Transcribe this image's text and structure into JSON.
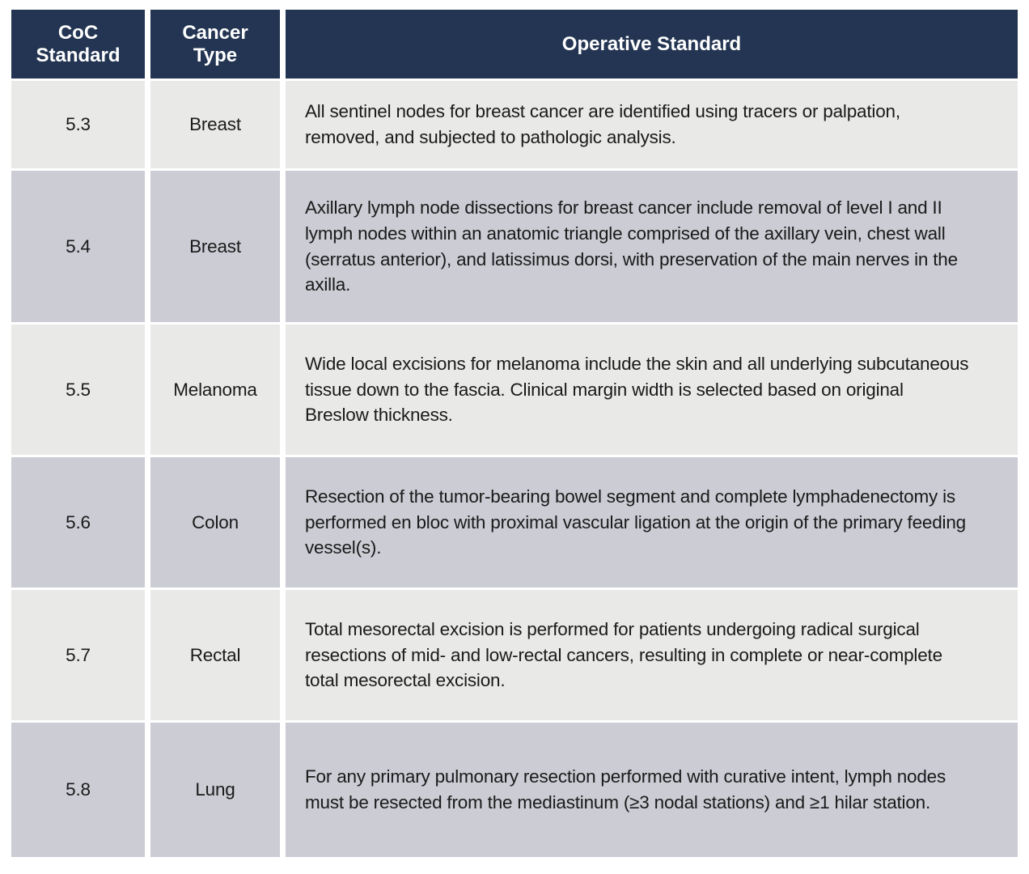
{
  "colors": {
    "header_background": "#233552",
    "header_text": "#ffffff",
    "row_light_background": "#e9e9e8",
    "row_dark_background": "#cbccd4",
    "body_text": "#1a1a1a",
    "separator": "#ffffff"
  },
  "table": {
    "columns": [
      {
        "key": "standard",
        "label": "CoC\nStandard"
      },
      {
        "key": "cancer_type",
        "label": "Cancer\nType"
      },
      {
        "key": "operative_standard",
        "label": "Operative Standard"
      }
    ],
    "rows": [
      {
        "standard": "5.3",
        "cancer_type": "Breast",
        "operative_standard": "All sentinel nodes for breast cancer are identified using tracers or palpation, removed, and subjected to pathologic analysis."
      },
      {
        "standard": "5.4",
        "cancer_type": "Breast",
        "operative_standard": "Axillary lymph node dissections for breast cancer include removal of level I and II lymph nodes within an anatomic triangle comprised of the axillary vein, chest wall (serratus anterior), and latissimus dorsi, with preservation of the main nerves in the axilla."
      },
      {
        "standard": "5.5",
        "cancer_type": "Melanoma",
        "operative_standard": "Wide local excisions for melanoma include the skin and all underlying subcutaneous tissue down to the fascia. Clinical margin width is selected based on original Breslow thickness."
      },
      {
        "standard": "5.6",
        "cancer_type": "Colon",
        "operative_standard": "Resection of the tumor-bearing bowel segment and complete lymphadenectomy is performed en bloc with proximal vascular ligation at the origin of the primary feeding vessel(s)."
      },
      {
        "standard": "5.7",
        "cancer_type": "Rectal",
        "operative_standard": "Total mesorectal excision is performed for patients undergoing radical surgical resections of mid- and low-rectal cancers, resulting in complete or near-complete total mesorectal excision."
      },
      {
        "standard": "5.8",
        "cancer_type": "Lung",
        "operative_standard": "For any primary pulmonary resection performed with curative intent, lymph nodes must be resected from the mediastinum (≥3 nodal stations) and ≥1 hilar station."
      }
    ]
  }
}
